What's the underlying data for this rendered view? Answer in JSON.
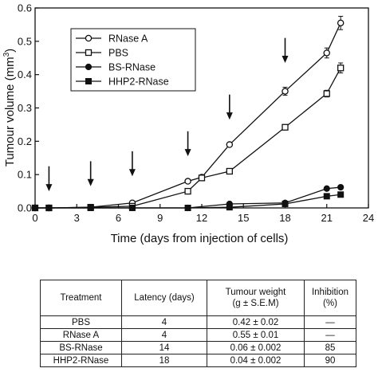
{
  "chart_data": {
    "type": "line",
    "xlabel": "Time (days from injection of cells)",
    "ylabel": "Tumour volume (mm3)",
    "ylabel_main": "Tumour volume (mm",
    "ylabel_sup": "3",
    "ylabel_close": ")",
    "xlim": [
      0,
      24
    ],
    "ylim": [
      0,
      0.6
    ],
    "x_ticks": [
      0,
      3,
      6,
      9,
      12,
      15,
      18,
      21,
      24
    ],
    "y_ticks": [
      0.0,
      0.1,
      0.2,
      0.3,
      0.4,
      0.5,
      0.6
    ],
    "y_tick_labels": [
      "0.0",
      "0.1",
      "0.2",
      "0.3",
      "0.4",
      "0.5",
      "0.6"
    ],
    "legend_position": "top-left",
    "series": [
      {
        "name": "RNase A",
        "marker": "open-circle",
        "x": [
          0,
          1,
          4,
          7,
          11,
          12,
          14,
          18,
          21,
          22
        ],
        "y": [
          0.0,
          0.0,
          0.002,
          0.015,
          0.08,
          0.092,
          0.19,
          0.35,
          0.465,
          0.555
        ],
        "err": [
          0,
          0,
          0,
          0,
          0,
          0,
          0,
          0.012,
          0.015,
          0.02
        ]
      },
      {
        "name": "PBS",
        "marker": "open-square",
        "x": [
          0,
          1,
          4,
          7,
          11,
          12,
          14,
          18,
          21,
          22
        ],
        "y": [
          0.0,
          0.0,
          0.002,
          0.005,
          0.05,
          0.09,
          0.11,
          0.242,
          0.343,
          0.42
        ],
        "err": [
          0,
          0,
          0,
          0,
          0,
          0,
          0,
          0,
          0.01,
          0.015
        ]
      },
      {
        "name": "BS-RNase",
        "marker": "filled-circle",
        "x": [
          0,
          1,
          4,
          7,
          11,
          14,
          18,
          21,
          22
        ],
        "y": [
          0.0,
          0.0,
          0.0,
          0.0,
          0.0,
          0.012,
          0.015,
          0.058,
          0.062
        ],
        "err": [
          0,
          0,
          0,
          0,
          0,
          0,
          0,
          0,
          0
        ]
      },
      {
        "name": "HHP2-RNase",
        "marker": "filled-square",
        "x": [
          0,
          1,
          4,
          7,
          11,
          14,
          18,
          21,
          22
        ],
        "y": [
          0.0,
          0.0,
          0.0,
          0.0,
          0.0,
          0.002,
          0.012,
          0.035,
          0.04
        ],
        "err": [
          0,
          0,
          0,
          0,
          0,
          0,
          0,
          0,
          0
        ]
      }
    ],
    "injection_arrows_days": [
      1,
      4,
      7,
      11,
      14,
      18
    ]
  },
  "table": {
    "headers": [
      "Treatment",
      "Latency (days)",
      "Tumour weight",
      "(g ± S.E.M)",
      "Inhibition (%)"
    ],
    "rows": [
      {
        "treatment": "PBS",
        "latency": "4",
        "weight": "0.42 ± 0.02",
        "inhibition": "—"
      },
      {
        "treatment": "RNase A",
        "latency": "4",
        "weight": "0.55 ± 0.01",
        "inhibition": "—"
      },
      {
        "treatment": "BS-RNase",
        "latency": "14",
        "weight": "0.06 ± 0.002",
        "inhibition": "85"
      },
      {
        "treatment": "HHP2-RNase",
        "latency": "18",
        "weight": "0.04 ± 0.002",
        "inhibition": "90"
      }
    ]
  },
  "colors": {
    "ink": "#111111",
    "background": "#ffffff"
  }
}
